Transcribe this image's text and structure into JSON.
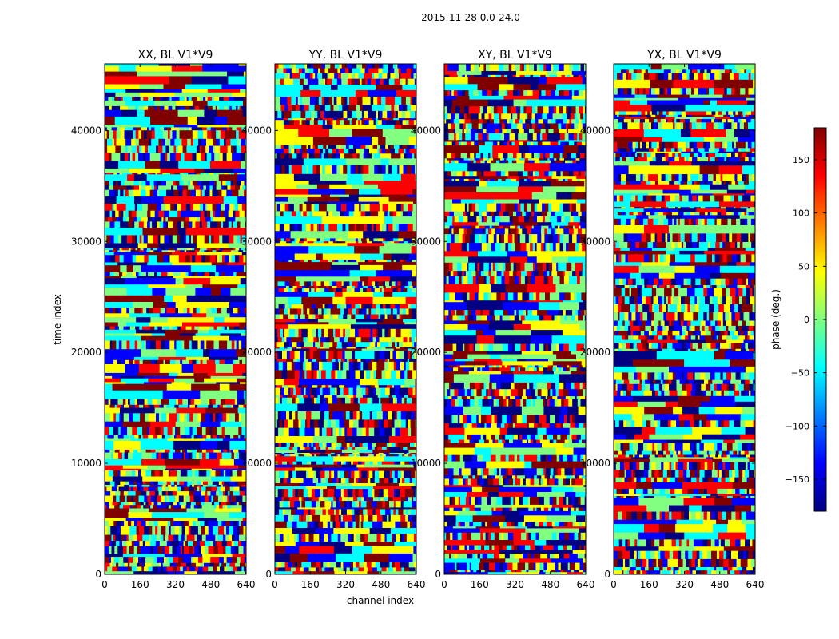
{
  "figure": {
    "suptitle": "2015-11-28 0.0-24.0"
  },
  "chart_data": {
    "type": "heatmap",
    "panels": [
      {
        "title": "XX, BL V1*V9",
        "show_xlabel": false
      },
      {
        "title": "YY, BL V1*V9",
        "show_xlabel": true
      },
      {
        "title": "XY, BL V1*V9",
        "show_xlabel": false
      },
      {
        "title": "YX, BL V1*V9",
        "show_xlabel": false
      }
    ],
    "xlabel": "channel index",
    "ylabel": "time index",
    "xlim": [
      0,
      640
    ],
    "ylim": [
      0,
      46000
    ],
    "xticks": [
      0,
      160,
      320,
      480,
      640
    ],
    "yticks": [
      0,
      10000,
      20000,
      30000,
      40000
    ],
    "colorbar": {
      "label": "phase (deg.)",
      "range": [
        -180,
        180
      ],
      "ticks": [
        150,
        100,
        50,
        0,
        -50,
        -100,
        -150
      ],
      "tick_labels": [
        "150",
        "100",
        "50",
        "0",
        "−50",
        "−100",
        "−150"
      ],
      "colormap": "jet",
      "stops": [
        "#000080",
        "#0000ff",
        "#00ffff",
        "#80ff80",
        "#ffff00",
        "#ff0000",
        "#800000"
      ]
    }
  }
}
